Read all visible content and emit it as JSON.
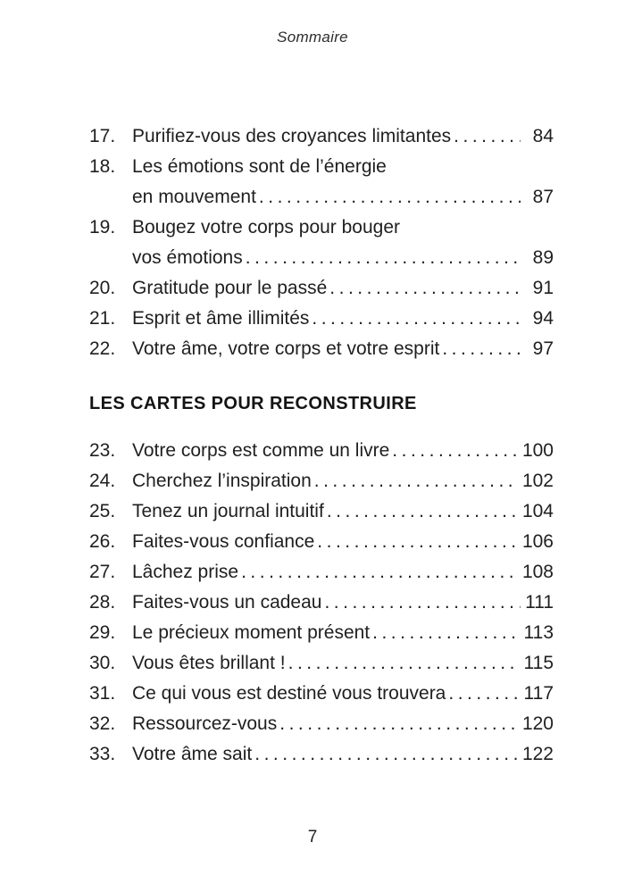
{
  "page": {
    "header": "Sommaire",
    "footer_page_number": "7"
  },
  "toc": {
    "sections": [
      {
        "entries": [
          {
            "num": "17.",
            "line1": "Purifiez-vous des croyances limitantes",
            "page": "84"
          },
          {
            "num": "18.",
            "line1": "Les émotions sont de l’énergie",
            "line2": "en mouvement",
            "page": "87"
          },
          {
            "num": "19.",
            "line1": "Bougez votre corps pour bouger",
            "line2": "vos émotions",
            "page": "89"
          },
          {
            "num": "20.",
            "line1": "Gratitude pour le passé",
            "page": "91"
          },
          {
            "num": "21.",
            "line1": "Esprit et âme illimités",
            "page": "94"
          },
          {
            "num": "22.",
            "line1": "Votre âme, votre corps et votre esprit",
            "page": "97"
          }
        ]
      },
      {
        "heading": "LES CARTES POUR RECONSTRUIRE",
        "entries": [
          {
            "num": "23.",
            "line1": "Votre corps est comme un livre",
            "page": "100"
          },
          {
            "num": "24.",
            "line1": "Cherchez l’inspiration",
            "page": "102"
          },
          {
            "num": "25.",
            "line1": "Tenez un journal intuitif",
            "page": "104"
          },
          {
            "num": "26.",
            "line1": "Faites-vous confiance",
            "page": "106"
          },
          {
            "num": "27.",
            "line1": "Lâchez prise",
            "page": "108"
          },
          {
            "num": "28.",
            "line1": "Faites-vous un cadeau",
            "page": "111"
          },
          {
            "num": "29.",
            "line1": "Le précieux moment présent",
            "page": "113"
          },
          {
            "num": "30.",
            "line1": "Vous êtes brillant !",
            "page": "115"
          },
          {
            "num": "31.",
            "line1": "Ce qui vous est destiné vous trouvera",
            "page": "117"
          },
          {
            "num": "32.",
            "line1": "Ressourcez-vous",
            "page": "120"
          },
          {
            "num": "33.",
            "line1": "Votre âme sait",
            "page": "122"
          }
        ]
      }
    ]
  }
}
